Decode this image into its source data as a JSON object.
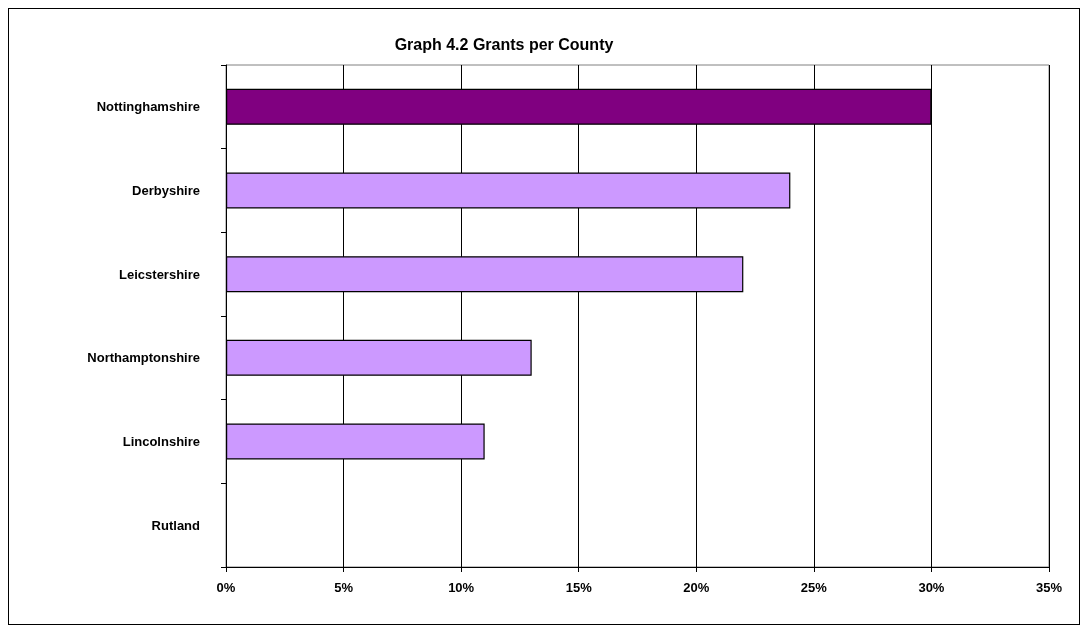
{
  "chart_data": {
    "type": "bar",
    "orientation": "horizontal",
    "title": "Graph 4.2 Grants per County",
    "categories": [
      "Nottinghamshire",
      "Derbyshire",
      "Leicstershire",
      "Northamptonshire",
      "Lincolnshire",
      "Rutland"
    ],
    "values": [
      30,
      24,
      22,
      13,
      11,
      0
    ],
    "colors": [
      "#800080",
      "#cc99ff",
      "#cc99ff",
      "#cc99ff",
      "#cc99ff",
      "#cc99ff"
    ],
    "xlim": [
      0,
      35
    ],
    "xticks": [
      {
        "value": 0,
        "label": "0%"
      },
      {
        "value": 5,
        "label": "5%"
      },
      {
        "value": 10,
        "label": "10%"
      },
      {
        "value": 15,
        "label": "15%"
      },
      {
        "value": 20,
        "label": "20%"
      },
      {
        "value": 25,
        "label": "25%"
      },
      {
        "value": 30,
        "label": "30%"
      },
      {
        "value": 35,
        "label": "35%"
      }
    ],
    "grid": "x"
  }
}
